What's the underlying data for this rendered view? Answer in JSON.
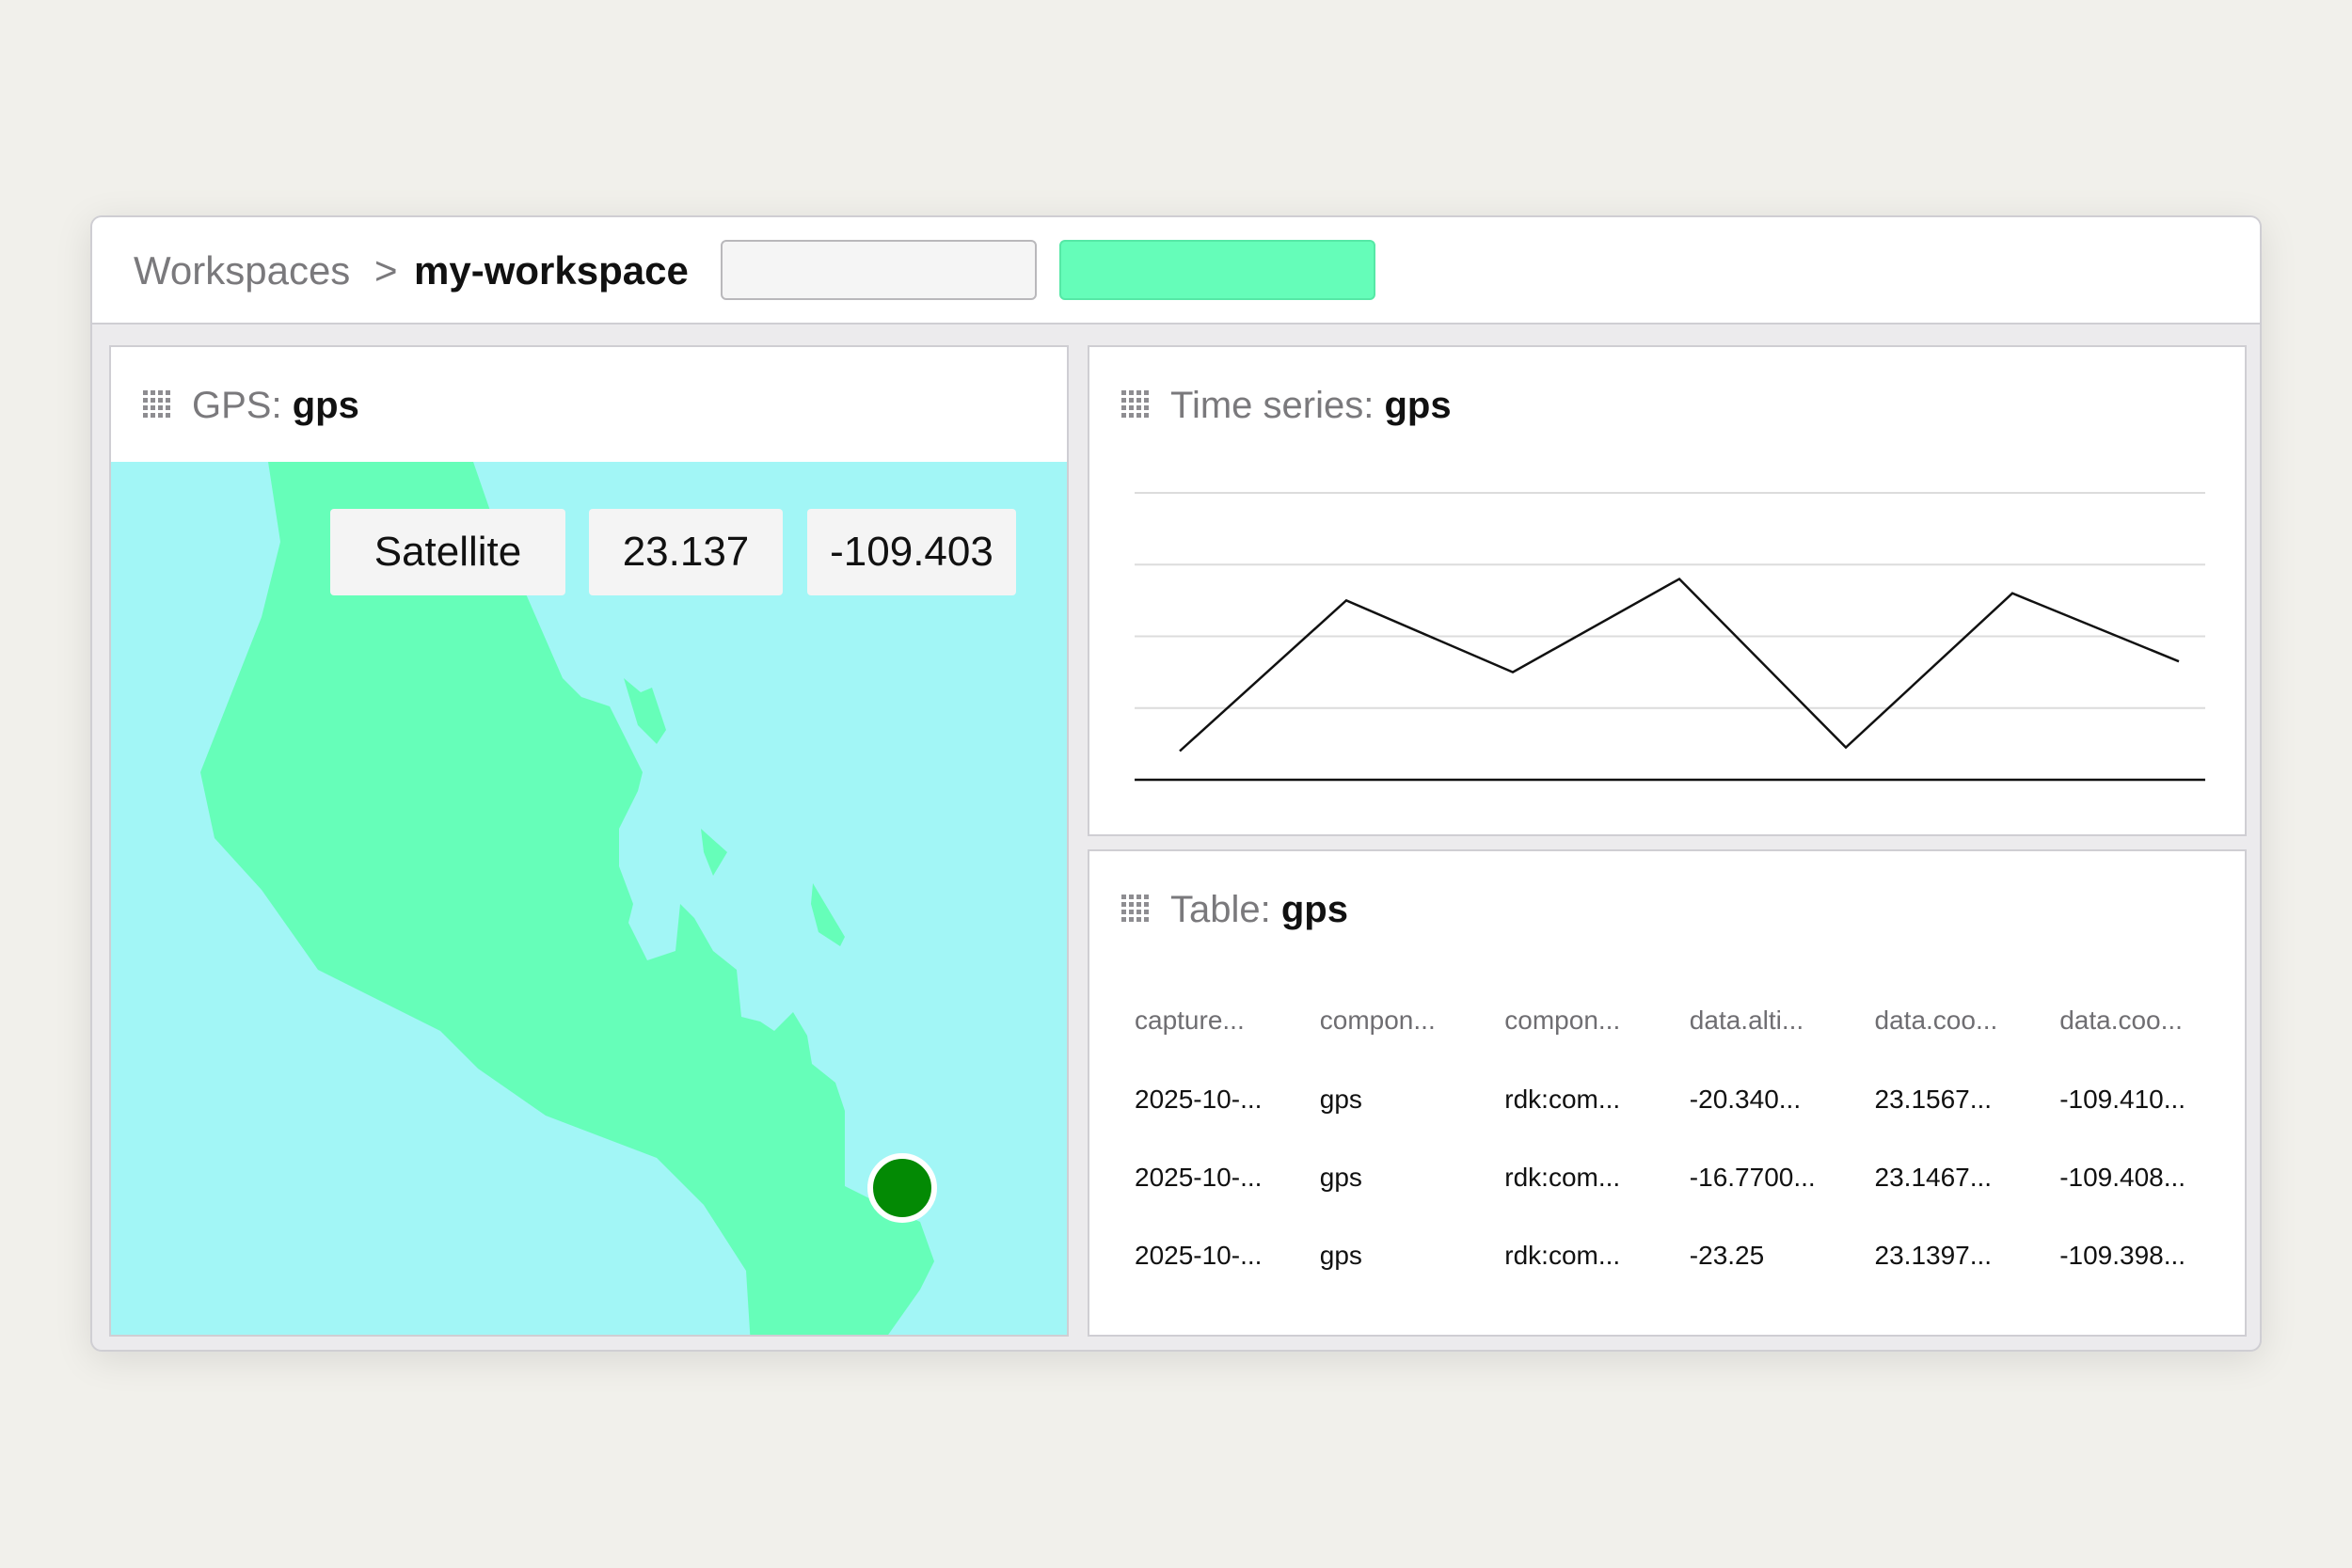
{
  "topbar": {
    "breadcrumb_root": "Workspaces",
    "breadcrumb_separator": ">",
    "breadcrumb_current": "my-workspace",
    "input_value": "",
    "button_label": "",
    "accent_color": "#65fdb9"
  },
  "gps_panel": {
    "type_label": "GPS:",
    "name": "gps",
    "map_layer": "Satellite",
    "latitude": "23.137",
    "longitude": "-109.403",
    "marker_color": "#038a04",
    "land_color": "#66feb9",
    "water_color": "#a2f6f6"
  },
  "timeseries_panel": {
    "type_label": "Time series:",
    "name": "gps"
  },
  "chart_data": {
    "type": "line",
    "title": "",
    "xlabel": "",
    "ylabel": "",
    "grid": true,
    "legend": "none",
    "ylim": [
      0,
      4
    ],
    "x": [
      0,
      1,
      2,
      3,
      4,
      5,
      6
    ],
    "series": [
      {
        "values": [
          0.4,
          2.5,
          1.5,
          2.8,
          0.45,
          2.6,
          1.65
        ]
      }
    ]
  },
  "table_panel": {
    "type_label": "Table:",
    "name": "gps",
    "columns": [
      "capture...",
      "compon...",
      "compon...",
      "data.alti...",
      "data.coo...",
      "data.coo..."
    ],
    "rows": [
      [
        "2025-10-...",
        "gps",
        "rdk:com...",
        "-20.340...",
        "23.1567...",
        "-109.410..."
      ],
      [
        "2025-10-...",
        "gps",
        "rdk:com...",
        "-16.7700...",
        "23.1467...",
        "-109.408..."
      ],
      [
        "2025-10-...",
        "gps",
        "rdk:com...",
        "-23.25",
        "23.1397...",
        "-109.398..."
      ]
    ]
  }
}
